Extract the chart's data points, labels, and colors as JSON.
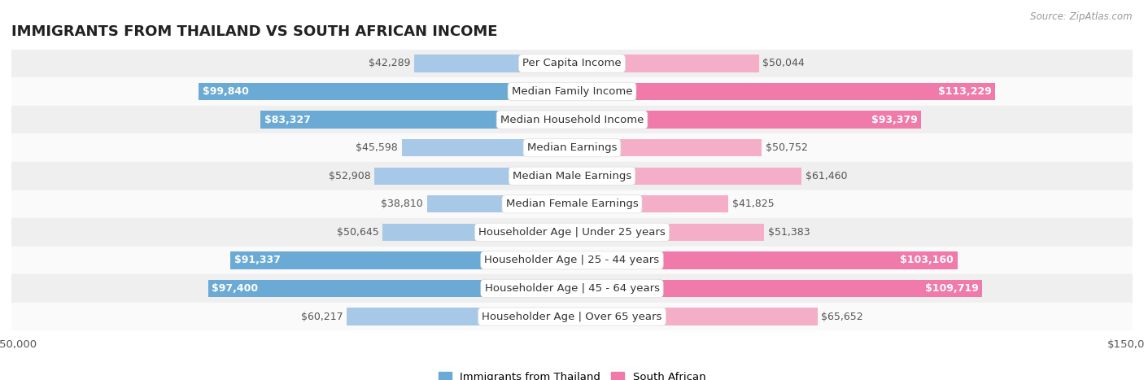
{
  "title": "IMMIGRANTS FROM THAILAND VS SOUTH AFRICAN INCOME",
  "source": "Source: ZipAtlas.com",
  "categories": [
    "Per Capita Income",
    "Median Family Income",
    "Median Household Income",
    "Median Earnings",
    "Median Male Earnings",
    "Median Female Earnings",
    "Householder Age | Under 25 years",
    "Householder Age | 25 - 44 years",
    "Householder Age | 45 - 64 years",
    "Householder Age | Over 65 years"
  ],
  "thailand_values": [
    42289,
    99840,
    83327,
    45598,
    52908,
    38810,
    50645,
    91337,
    97400,
    60217
  ],
  "southafrican_values": [
    50044,
    113229,
    93379,
    50752,
    61460,
    41825,
    51383,
    103160,
    109719,
    65652
  ],
  "thailand_labels": [
    "$42,289",
    "$99,840",
    "$83,327",
    "$45,598",
    "$52,908",
    "$38,810",
    "$50,645",
    "$91,337",
    "$97,400",
    "$60,217"
  ],
  "southafrican_labels": [
    "$50,044",
    "$113,229",
    "$93,379",
    "$50,752",
    "$61,460",
    "$41,825",
    "$51,383",
    "$103,160",
    "$109,719",
    "$65,652"
  ],
  "thailand_color_light": "#a8c8e8",
  "thailand_color_strong": "#6aaad4",
  "southafrican_color_light": "#f5aec8",
  "southafrican_color_strong": "#f07aaa",
  "max_value": 150000,
  "legend_thailand": "Immigrants from Thailand",
  "legend_southafrican": "South African",
  "row_bg_odd": "#efefef",
  "row_bg_even": "#fafafa",
  "bar_height": 0.62,
  "label_fontsize": 9.0,
  "category_fontsize": 9.5,
  "title_fontsize": 13,
  "strong_threshold": 75000
}
